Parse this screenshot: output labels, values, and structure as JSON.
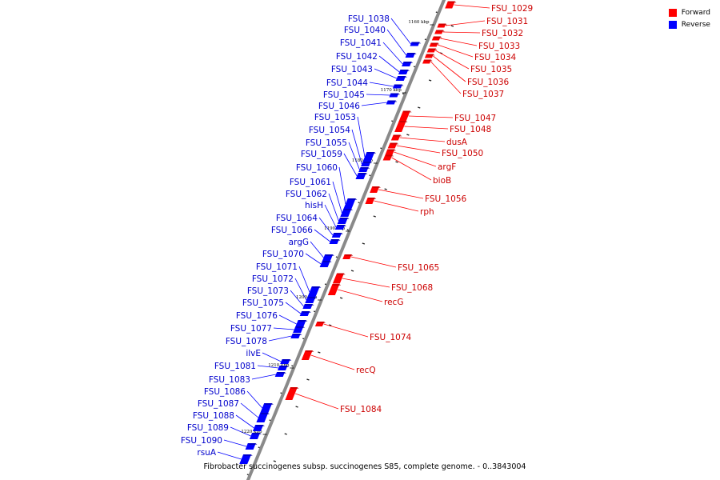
{
  "legend": [
    {
      "label": "Forward",
      "color": "#ff0000"
    },
    {
      "label": "Reverse",
      "color": "#0000ff"
    }
  ],
  "caption": "Fibrobacter succinogenes subsp. succinogenes S85, complete genome. - 0..3843004",
  "scale_ticks": [
    "1160 kbp",
    "1170 kbp",
    "1180 kbp",
    "1190 kbp",
    "1200 kbp",
    "1210 kbp",
    "1220 kbp"
  ],
  "forward_genes": [
    "FSU_1029",
    "FSU_1031",
    "FSU_1032",
    "FSU_1033",
    "FSU_1034",
    "FSU_1035",
    "FSU_1036",
    "FSU_1037",
    "FSU_1047",
    "FSU_1048",
    "dusA",
    "FSU_1050",
    "argF",
    "bioB",
    "FSU_1056",
    "rph",
    "FSU_1065",
    "FSU_1068",
    "recG",
    "FSU_1074",
    "recQ",
    "FSU_1084"
  ],
  "reverse_genes": [
    "FSU_1038",
    "FSU_1040",
    "FSU_1041",
    "FSU_1042",
    "FSU_1043",
    "FSU_1044",
    "FSU_1045",
    "FSU_1046",
    "FSU_1053",
    "FSU_1054",
    "FSU_1055",
    "FSU_1059",
    "FSU_1060",
    "FSU_1061",
    "FSU_1062",
    "hisH",
    "FSU_1064",
    "FSU_1066",
    "argG",
    "FSU_1070",
    "FSU_1071",
    "FSU_1072",
    "FSU_1073",
    "FSU_1075",
    "FSU_1076",
    "FSU_1077",
    "FSU_1078",
    "ilvE",
    "FSU_1081",
    "FSU_1083",
    "FSU_1086",
    "FSU_1087",
    "FSU_1088",
    "FSU_1089",
    "FSU_1090",
    "rsuA"
  ]
}
